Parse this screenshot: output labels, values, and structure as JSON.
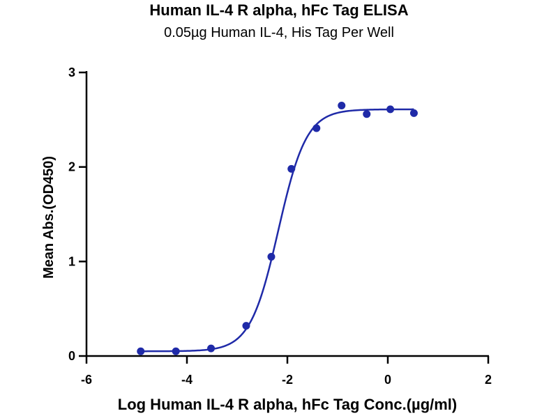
{
  "chart_data": {
    "type": "scatter",
    "title": "Human IL-4 R alpha, hFc Tag ELISA",
    "subtitle": "0.05µg Human IL-4, His Tag Per Well",
    "xlabel": "Log Human IL-4 R alpha, hFc Tag Conc.(µg/ml)",
    "ylabel": "Mean Abs.(OD450)",
    "xlim": [
      -6,
      2
    ],
    "ylim": [
      0,
      3
    ],
    "x_ticks": [
      -6,
      -4,
      -2,
      0,
      2
    ],
    "y_ticks": [
      0,
      1,
      2,
      3
    ],
    "x_tick_labels": [
      "-6",
      "-4",
      "-2",
      "0",
      "2"
    ],
    "y_tick_labels": [
      "0",
      "1",
      "2",
      "3"
    ],
    "grid": false,
    "color": "#1f2aa8",
    "series": [
      {
        "x": [
          -4.92,
          -4.22,
          -3.52,
          -2.82,
          -2.32,
          -1.92,
          -1.42,
          -0.92,
          -0.42,
          0.05,
          0.52
        ],
        "y": [
          0.05,
          0.05,
          0.08,
          0.32,
          1.05,
          1.98,
          2.41,
          2.65,
          2.56,
          2.61,
          2.57
        ]
      }
    ],
    "fit_curve": {
      "model": "4PL",
      "bottom": 0.05,
      "top": 2.61,
      "log_ec50": -2.18,
      "hill_slope": 1.55
    }
  }
}
